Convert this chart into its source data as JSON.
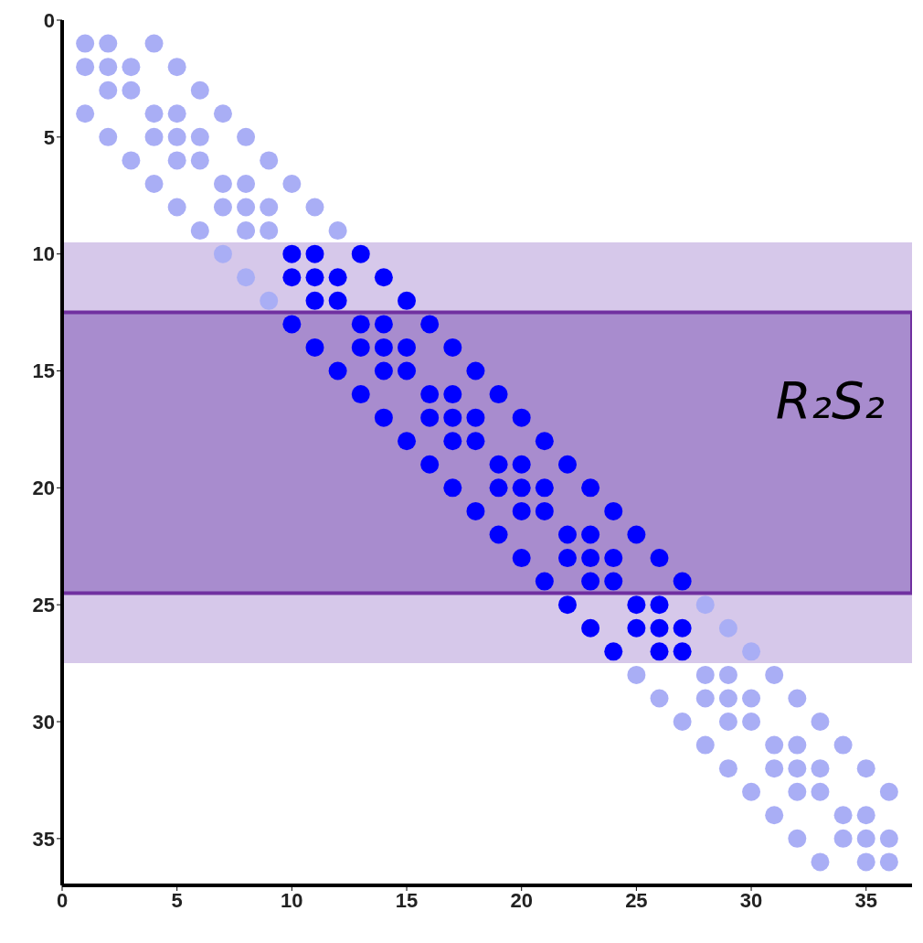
{
  "chart_data": {
    "type": "scatter",
    "xlim": [
      0,
      37
    ],
    "ylim": [
      37,
      0
    ],
    "xticks": [
      0,
      5,
      10,
      15,
      20,
      25,
      30,
      35
    ],
    "yticks": [
      0,
      5,
      10,
      15,
      20,
      25,
      30,
      35
    ],
    "grid": false,
    "legend": false,
    "marker": "circle",
    "bands": [
      {
        "axis": "y",
        "from": 9.5,
        "to": 27.5,
        "color": "#d6c8ea"
      },
      {
        "axis": "y",
        "from": 12.5,
        "to": 24.5,
        "label": "R₂S₂",
        "color": "#a88cce"
      }
    ],
    "series": [
      {
        "color": "#a9aef5",
        "x": [
          1,
          2,
          4,
          1,
          2,
          3,
          5,
          2,
          3,
          6,
          1,
          4,
          5,
          7,
          2,
          4,
          5,
          6,
          8,
          3,
          5,
          6,
          9,
          4,
          7,
          8,
          10,
          5,
          7,
          8,
          9,
          11,
          6,
          8,
          9,
          12,
          7,
          8,
          9,
          28,
          29,
          30,
          25,
          28,
          29,
          31,
          26,
          28,
          29,
          30,
          32,
          27,
          29,
          30,
          33,
          28,
          31,
          32,
          34,
          29,
          31,
          32,
          33,
          35,
          30,
          32,
          33,
          36,
          31,
          34,
          35,
          32,
          34,
          35,
          36,
          33,
          35,
          36
        ],
        "values": [
          1,
          1,
          1,
          2,
          2,
          2,
          2,
          3,
          3,
          3,
          4,
          4,
          4,
          4,
          5,
          5,
          5,
          5,
          5,
          6,
          6,
          6,
          6,
          7,
          7,
          7,
          7,
          8,
          8,
          8,
          8,
          8,
          9,
          9,
          9,
          9,
          10,
          11,
          12,
          25,
          26,
          27,
          28,
          28,
          28,
          28,
          29,
          29,
          29,
          29,
          29,
          30,
          30,
          30,
          30,
          31,
          31,
          31,
          31,
          32,
          32,
          32,
          32,
          32,
          33,
          33,
          33,
          33,
          34,
          34,
          34,
          35,
          35,
          35,
          35,
          36,
          36,
          36
        ]
      },
      {
        "color": "#0000ff",
        "x": [
          10,
          11,
          13,
          10,
          11,
          12,
          14,
          11,
          12,
          15,
          10,
          13,
          14,
          16,
          11,
          13,
          14,
          15,
          17,
          12,
          14,
          15,
          18,
          13,
          16,
          17,
          19,
          14,
          16,
          17,
          18,
          20,
          15,
          17,
          18,
          21,
          16,
          19,
          20,
          22,
          17,
          19,
          20,
          21,
          23,
          18,
          20,
          21,
          24,
          19,
          22,
          23,
          25,
          20,
          22,
          23,
          24,
          26,
          21,
          23,
          24,
          27,
          22,
          25,
          26,
          23,
          25,
          26,
          27,
          24,
          26,
          27
        ],
        "values": [
          10,
          10,
          10,
          11,
          11,
          11,
          11,
          12,
          12,
          12,
          13,
          13,
          13,
          13,
          14,
          14,
          14,
          14,
          14,
          15,
          15,
          15,
          15,
          16,
          16,
          16,
          16,
          17,
          17,
          17,
          17,
          17,
          18,
          18,
          18,
          18,
          19,
          19,
          19,
          19,
          20,
          20,
          20,
          20,
          20,
          21,
          21,
          21,
          21,
          22,
          22,
          22,
          22,
          23,
          23,
          23,
          23,
          23,
          24,
          24,
          24,
          24,
          25,
          25,
          25,
          26,
          26,
          26,
          26,
          27,
          27,
          27
        ]
      }
    ]
  }
}
